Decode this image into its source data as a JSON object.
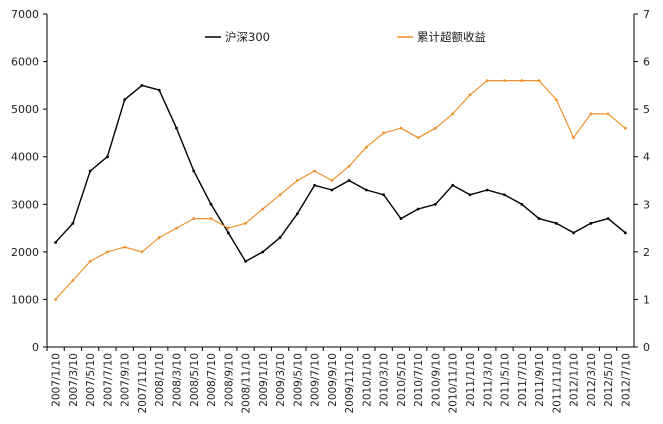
{
  "chart_data": {
    "type": "line",
    "title": "",
    "xlabel": "",
    "ylabel": "",
    "left_axis": {
      "min": 0,
      "max": 7000,
      "ticks": [
        "0",
        "1000",
        "2000",
        "3000",
        "4000",
        "5000",
        "6000",
        "7000"
      ]
    },
    "right_axis": {
      "min": 0,
      "max": 7,
      "ticks": [
        "0",
        "1",
        "2",
        "3",
        "4",
        "5",
        "6",
        "7"
      ]
    },
    "grid": false,
    "legend_position": "top",
    "categories": [
      "2007/1/10",
      "2007/3/10",
      "2007/5/10",
      "2007/7/10",
      "2007/9/10",
      "2007/11/10",
      "2008/1/10",
      "2008/3/10",
      "2008/5/10",
      "2008/7/10",
      "2008/9/10",
      "2008/11/10",
      "2009/1/10",
      "2009/3/10",
      "2009/5/10",
      "2009/7/10",
      "2009/9/10",
      "2009/11/10",
      "2010/1/10",
      "2010/3/10",
      "2010/5/10",
      "2010/7/10",
      "2010/9/10",
      "2010/11/10",
      "2011/1/10",
      "2011/3/10",
      "2011/5/10",
      "2011/7/10",
      "2011/9/10",
      "2011/11/10",
      "2012/1/10",
      "2012/3/10",
      "2012/5/10",
      "2012/7/10"
    ],
    "series": [
      {
        "name": "沪深300",
        "axis": "left",
        "color": "#000000",
        "values": [
          2200,
          2600,
          3700,
          4000,
          5200,
          5500,
          5400,
          4600,
          3700,
          3000,
          2400,
          1800,
          2000,
          2300,
          2800,
          3400,
          3300,
          3500,
          3300,
          3200,
          2700,
          2900,
          3000,
          3400,
          3200,
          3300,
          3200,
          3000,
          2700,
          2600,
          2400,
          2600,
          2700,
          2400
        ]
      },
      {
        "name": "累计超额收益",
        "axis": "right",
        "color": "#f0912b",
        "values": [
          1.0,
          1.4,
          1.8,
          2.0,
          2.1,
          2.0,
          2.3,
          2.5,
          2.7,
          2.7,
          2.5,
          2.6,
          2.9,
          3.2,
          3.5,
          3.7,
          3.5,
          3.8,
          4.2,
          4.5,
          4.6,
          4.4,
          4.6,
          4.9,
          5.3,
          5.6,
          5.6,
          5.6,
          5.6,
          5.2,
          4.4,
          4.9,
          4.9,
          4.6
        ]
      }
    ]
  }
}
